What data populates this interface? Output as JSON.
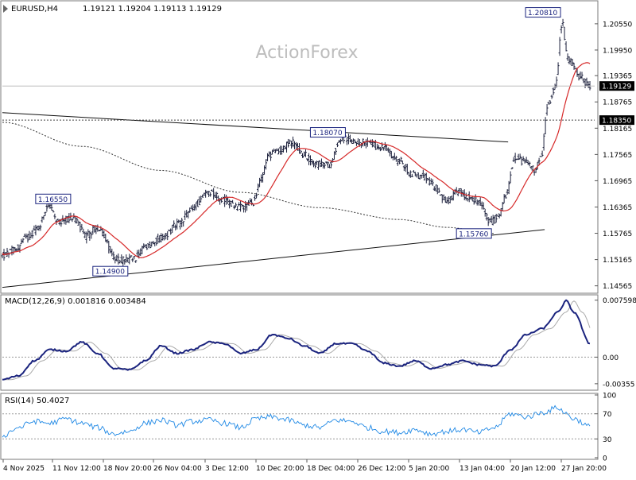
{
  "header": {
    "symbol": "EURUSD,H4",
    "ohlc": "1.19121 1.19204 1.19113 1.19129"
  },
  "watermark": "ActionForex",
  "chart_data": [
    {
      "type": "candlestick",
      "panel": "price",
      "y_range": [
        1.1445,
        1.2102
      ],
      "y_ticks": [
        "1.20550",
        "1.19950",
        "1.19365",
        "1.18765",
        "1.18165",
        "1.17565",
        "1.16965",
        "1.16365",
        "1.15765",
        "1.15165",
        "1.14565"
      ],
      "x_ticks": [
        "4 Nov 2025",
        "11 Nov 12:00",
        "18 Nov 20:00",
        "26 Nov 04:00",
        "3 Dec 12:00",
        "10 Dec 20:00",
        "18 Dec 04:00",
        "26 Dec 12:00",
        "5 Jan 20:00",
        "13 Jan 04:00",
        "20 Jan 12:00",
        "27 Jan 20:00"
      ],
      "price_anchors": [
        [
          0,
          1.1525
        ],
        [
          15,
          1.1538
        ],
        [
          30,
          1.1565
        ],
        [
          45,
          1.159
        ],
        [
          58,
          1.1642
        ],
        [
          70,
          1.16
        ],
        [
          90,
          1.1612
        ],
        [
          105,
          1.157
        ],
        [
          120,
          1.159
        ],
        [
          145,
          1.1515
        ],
        [
          165,
          1.1518
        ],
        [
          180,
          1.1545
        ],
        [
          200,
          1.1565
        ],
        [
          222,
          1.1598
        ],
        [
          240,
          1.1636
        ],
        [
          260,
          1.1672
        ],
        [
          280,
          1.1652
        ],
        [
          300,
          1.1635
        ],
        [
          315,
          1.1645
        ],
        [
          325,
          1.1695
        ],
        [
          335,
          1.1755
        ],
        [
          350,
          1.1765
        ],
        [
          365,
          1.1785
        ],
        [
          380,
          1.1755
        ],
        [
          395,
          1.1735
        ],
        [
          410,
          1.1732
        ],
        [
          428,
          1.1795
        ],
        [
          440,
          1.1788
        ],
        [
          460,
          1.1782
        ],
        [
          480,
          1.1772
        ],
        [
          500,
          1.1742
        ],
        [
          515,
          1.1712
        ],
        [
          530,
          1.1705
        ],
        [
          545,
          1.1682
        ],
        [
          560,
          1.1648
        ],
        [
          575,
          1.1672
        ],
        [
          590,
          1.1658
        ],
        [
          600,
          1.1646
        ],
        [
          615,
          1.1602
        ],
        [
          625,
          1.1615
        ],
        [
          635,
          1.1665
        ],
        [
          645,
          1.1752
        ],
        [
          660,
          1.1738
        ],
        [
          670,
          1.1722
        ],
        [
          678,
          1.1748
        ],
        [
          688,
          1.1875
        ],
        [
          697,
          1.1915
        ],
        [
          705,
          1.206
        ],
        [
          712,
          1.1975
        ],
        [
          720,
          1.196
        ],
        [
          728,
          1.1932
        ],
        [
          740,
          1.1913
        ]
      ],
      "labels": [
        {
          "text": "1.20810",
          "price": 1.2081,
          "candle_index": 705
        },
        {
          "text": "1.18070",
          "price": 1.1807,
          "candle_index": 428
        },
        {
          "text": "1.16550",
          "price": 1.1655,
          "candle_index": 90
        },
        {
          "text": "1.15760",
          "price": 1.1576,
          "candle_index": 620
        },
        {
          "text": "1.14900",
          "price": 1.149,
          "candle_index": 150
        }
      ],
      "current_price": "1.19129",
      "level_line": "1.18350",
      "series": [
        {
          "type": "moving-average",
          "color": "#d62828"
        },
        {
          "type": "dotted-moving-average",
          "color": "#333333"
        }
      ],
      "trendlines": [
        {
          "from": [
            0,
            1.1852
          ],
          "to": [
            637,
            1.1785
          ]
        },
        {
          "from": [
            0,
            1.1453
          ],
          "to": [
            683,
            1.1585
          ]
        }
      ]
    },
    {
      "type": "line",
      "panel": "macd",
      "title": "MACD(12,26,9) 0.001816 0.003484",
      "y_range": [
        -0.0042,
        0.0081
      ],
      "y_ticks": [
        "0.007598",
        "0.00",
        "-0.00355"
      ],
      "macd_anchors": [
        [
          0,
          -0.003
        ],
        [
          20,
          -0.0025
        ],
        [
          40,
          -0.0005
        ],
        [
          60,
          0.001
        ],
        [
          80,
          0.0008
        ],
        [
          100,
          0.002
        ],
        [
          120,
          0.0005
        ],
        [
          140,
          -0.0015
        ],
        [
          160,
          -0.0017
        ],
        [
          180,
          -0.0005
        ],
        [
          200,
          0.0015
        ],
        [
          220,
          0.0005
        ],
        [
          240,
          0.001
        ],
        [
          260,
          0.002
        ],
        [
          280,
          0.0018
        ],
        [
          300,
          0.0005
        ],
        [
          320,
          0.001
        ],
        [
          340,
          0.003
        ],
        [
          360,
          0.0025
        ],
        [
          380,
          0.0015
        ],
        [
          400,
          0.0005
        ],
        [
          420,
          0.0018
        ],
        [
          440,
          0.0018
        ],
        [
          460,
          0.0008
        ],
        [
          480,
          -0.0008
        ],
        [
          500,
          -0.0012
        ],
        [
          520,
          -0.0005
        ],
        [
          540,
          -0.0015
        ],
        [
          560,
          -0.001
        ],
        [
          580,
          -0.0005
        ],
        [
          600,
          -0.001
        ],
        [
          620,
          -0.0012
        ],
        [
          640,
          0.001
        ],
        [
          660,
          0.003
        ],
        [
          680,
          0.0038
        ],
        [
          700,
          0.006
        ],
        [
          710,
          0.0075
        ],
        [
          720,
          0.006
        ],
        [
          740,
          0.0018
        ]
      ],
      "signal_color": "#aaaaaa",
      "macd_color": "#1a237e"
    },
    {
      "type": "line",
      "panel": "rsi",
      "title": "RSI(14) 50.4027",
      "y_range": [
        0,
        100
      ],
      "y_ticks": [
        "100",
        "70",
        "30",
        "0"
      ],
      "levels": [
        70,
        30
      ],
      "rsi_anchors": [
        [
          0,
          35
        ],
        [
          20,
          48
        ],
        [
          40,
          58
        ],
        [
          60,
          55
        ],
        [
          80,
          62
        ],
        [
          100,
          55
        ],
        [
          120,
          48
        ],
        [
          140,
          38
        ],
        [
          160,
          42
        ],
        [
          180,
          55
        ],
        [
          200,
          60
        ],
        [
          220,
          52
        ],
        [
          240,
          58
        ],
        [
          260,
          60
        ],
        [
          280,
          55
        ],
        [
          300,
          48
        ],
        [
          320,
          62
        ],
        [
          340,
          65
        ],
        [
          360,
          60
        ],
        [
          380,
          52
        ],
        [
          400,
          48
        ],
        [
          420,
          60
        ],
        [
          440,
          58
        ],
        [
          460,
          48
        ],
        [
          480,
          42
        ],
        [
          500,
          40
        ],
        [
          520,
          45
        ],
        [
          540,
          38
        ],
        [
          560,
          42
        ],
        [
          580,
          45
        ],
        [
          600,
          40
        ],
        [
          620,
          48
        ],
        [
          640,
          70
        ],
        [
          660,
          65
        ],
        [
          680,
          72
        ],
        [
          700,
          80
        ],
        [
          710,
          70
        ],
        [
          720,
          62
        ],
        [
          740,
          50
        ]
      ],
      "color": "#1e88e5"
    }
  ]
}
